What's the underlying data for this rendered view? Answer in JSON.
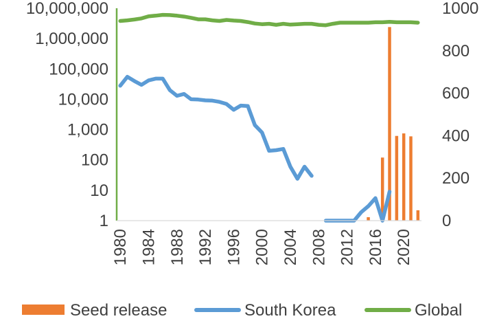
{
  "chart_data": {
    "type": "bar+line",
    "x": [
      1980,
      1981,
      1982,
      1983,
      1984,
      1985,
      1986,
      1987,
      1988,
      1989,
      1990,
      1991,
      1992,
      1993,
      1994,
      1995,
      1996,
      1997,
      1998,
      1999,
      2000,
      2001,
      2002,
      2003,
      2004,
      2005,
      2006,
      2007,
      2008,
      2009,
      2010,
      2011,
      2012,
      2013,
      2014,
      2015,
      2016,
      2017,
      2018,
      2019,
      2020,
      2021,
      2022
    ],
    "x_ticks": [
      "1980",
      "1984",
      "1988",
      "1992",
      "1996",
      "2000",
      "2004",
      "2008",
      "2012",
      "2016",
      "2020"
    ],
    "left_axis": {
      "scale": "log",
      "ylim": [
        1,
        10000000
      ],
      "ticks": [
        "1",
        "10",
        "100",
        "1,000",
        "10,000",
        "100,000",
        "1,000,000",
        "10,000,000"
      ]
    },
    "right_axis": {
      "scale": "linear",
      "ylim": [
        0,
        1000
      ],
      "ticks": [
        "0",
        "200",
        "400",
        "600",
        "800",
        "1000"
      ]
    },
    "series": [
      {
        "name": "Seed release",
        "kind": "bar",
        "axis": "left",
        "color": "#ED7D31",
        "points": [
          [
            2015,
            1.3
          ],
          [
            2017,
            120
          ],
          [
            2018,
            2400000
          ],
          [
            2019,
            620
          ],
          [
            2020,
            750
          ],
          [
            2021,
            600
          ],
          [
            2022,
            2.2
          ]
        ]
      },
      {
        "name": "South Korea",
        "kind": "line",
        "axis": "left",
        "color": "#5B9BD5",
        "segments": [
          [
            [
              1980,
              28000
            ],
            [
              1981,
              55000
            ],
            [
              1982,
              40000
            ],
            [
              1983,
              30000
            ],
            [
              1984,
              42000
            ],
            [
              1985,
              48000
            ],
            [
              1986,
              48000
            ],
            [
              1987,
              20000
            ],
            [
              1988,
              13000
            ],
            [
              1989,
              15000
            ],
            [
              1990,
              10000
            ],
            [
              1991,
              9800
            ],
            [
              1992,
              9200
            ],
            [
              1993,
              9000
            ],
            [
              1994,
              8200
            ],
            [
              1995,
              7000
            ],
            [
              1996,
              4500
            ],
            [
              1997,
              6200
            ],
            [
              1998,
              6000
            ],
            [
              1999,
              1400
            ],
            [
              2000,
              800
            ],
            [
              2001,
              200
            ],
            [
              2002,
              210
            ],
            [
              2003,
              230
            ],
            [
              2004,
              60
            ],
            [
              2005,
              24
            ],
            [
              2006,
              60
            ],
            [
              2007,
              30
            ]
          ],
          [
            [
              2009,
              1
            ],
            [
              2010,
              1
            ],
            [
              2011,
              1
            ],
            [
              2012,
              1
            ],
            [
              2013,
              1
            ],
            [
              2014,
              1.9
            ],
            [
              2015,
              3
            ],
            [
              2016,
              5.5
            ],
            [
              2017,
              1
            ],
            [
              2018,
              9
            ]
          ]
        ]
      },
      {
        "name": "Global",
        "kind": "line",
        "axis": "right",
        "color": "#70AD47",
        "points": [
          [
            1980,
            940
          ],
          [
            1981,
            943
          ],
          [
            1982,
            947
          ],
          [
            1983,
            952
          ],
          [
            1984,
            962
          ],
          [
            1985,
            965
          ],
          [
            1986,
            969
          ],
          [
            1987,
            968
          ],
          [
            1988,
            965
          ],
          [
            1989,
            961
          ],
          [
            1990,
            955
          ],
          [
            1991,
            948
          ],
          [
            1992,
            948
          ],
          [
            1993,
            943
          ],
          [
            1994,
            940
          ],
          [
            1995,
            945
          ],
          [
            1996,
            942
          ],
          [
            1997,
            940
          ],
          [
            1998,
            935
          ],
          [
            1999,
            928
          ],
          [
            2000,
            925
          ],
          [
            2001,
            927
          ],
          [
            2002,
            922
          ],
          [
            2003,
            927
          ],
          [
            2004,
            923
          ],
          [
            2005,
            925
          ],
          [
            2006,
            927
          ],
          [
            2007,
            927
          ],
          [
            2008,
            922
          ],
          [
            2009,
            920
          ],
          [
            2010,
            927
          ],
          [
            2011,
            932
          ],
          [
            2012,
            932
          ],
          [
            2013,
            932
          ],
          [
            2014,
            932
          ],
          [
            2015,
            932
          ],
          [
            2016,
            934
          ],
          [
            2017,
            934
          ],
          [
            2018,
            936
          ],
          [
            2019,
            934
          ],
          [
            2020,
            934
          ],
          [
            2021,
            934
          ],
          [
            2022,
            932
          ]
        ]
      }
    ],
    "legend": [
      "Seed release",
      "South Korea",
      "Global"
    ],
    "legend_position": "bottom",
    "grid": false,
    "title": "",
    "xlabel": "",
    "ylabel": ""
  }
}
